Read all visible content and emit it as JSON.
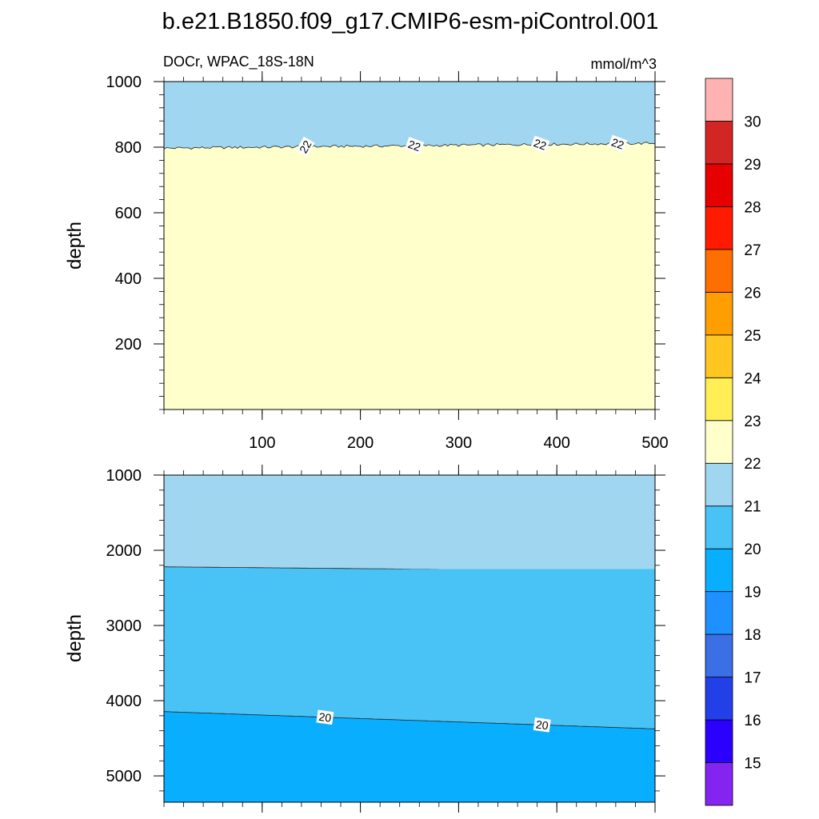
{
  "chart_data": {
    "title": "b.e21.B1850.f09_g17.CMIP6-esm-piControl.001",
    "subtitle_left": "DOCr, WPAC_18S-18N",
    "subtitle_right": "mmol/m^3",
    "type": "contour",
    "x_ticks": [
      "100",
      "200",
      "300",
      "400",
      "500"
    ],
    "x_range": [
      0,
      500
    ],
    "panels": [
      {
        "id": "upper",
        "y_range": [
          1000,
          0
        ],
        "ylabel": "depth",
        "y_ticks": [
          200,
          400,
          600,
          800,
          1000
        ],
        "regions": [
          {
            "level_range": [
              22,
              23
            ],
            "color": "#FFFFCC",
            "depth_top": 0,
            "depth_bottom": 800
          },
          {
            "level_range": [
              21,
              22
            ],
            "color": "#A0D6F0",
            "depth_top": 800,
            "depth_bottom": 1000
          }
        ],
        "contours": [
          {
            "level": 22,
            "depth_start": 797,
            "depth_end": 812,
            "labels": [
              {
                "x": 144,
                "text": "22"
              },
              {
                "x": 255,
                "text": "22"
              },
              {
                "x": 383,
                "text": "22"
              },
              {
                "x": 462,
                "text": "22"
              }
            ]
          }
        ]
      },
      {
        "id": "lower",
        "y_range": [
          1000,
          5350
        ],
        "ylabel": "depth",
        "y_ticks": [
          1000,
          2000,
          3000,
          4000,
          5000
        ],
        "regions": [
          {
            "level_range": [
              21,
              22
            ],
            "color": "#A0D6F0",
            "depth_top": 1000,
            "depth_bottom": 2250
          },
          {
            "level_range": [
              20,
              21
            ],
            "color": "#49C2F6",
            "depth_top": 2250,
            "depth_bottom": 4250
          },
          {
            "level_range": [
              19,
              20
            ],
            "color": "#0AAEFF",
            "depth_top": 4250,
            "depth_bottom": 5350
          }
        ],
        "contours": [
          {
            "level": 21,
            "depth_start": 2220,
            "depth_end": 2280,
            "labels": []
          },
          {
            "level": 20,
            "depth_start": 4145,
            "depth_end": 4375,
            "labels": [
              {
                "x": 164,
                "text": "20"
              },
              {
                "x": 385,
                "text": "20"
              }
            ]
          }
        ]
      }
    ],
    "colorbar": {
      "labels": [
        "15",
        "16",
        "17",
        "18",
        "19",
        "20",
        "21",
        "22",
        "23",
        "24",
        "25",
        "26",
        "27",
        "28",
        "29",
        "30"
      ],
      "colors": [
        "#8424F0",
        "#2B00FF",
        "#2340E8",
        "#3A6FE6",
        "#1E90FF",
        "#0AAEFF",
        "#49C2F6",
        "#A0D6F0",
        "#FFFFCC",
        "#FFEE55",
        "#FFC520",
        "#FF9E00",
        "#FF6E00",
        "#FF1A00",
        "#E60000",
        "#D42525",
        "#FFB2B2"
      ]
    }
  }
}
